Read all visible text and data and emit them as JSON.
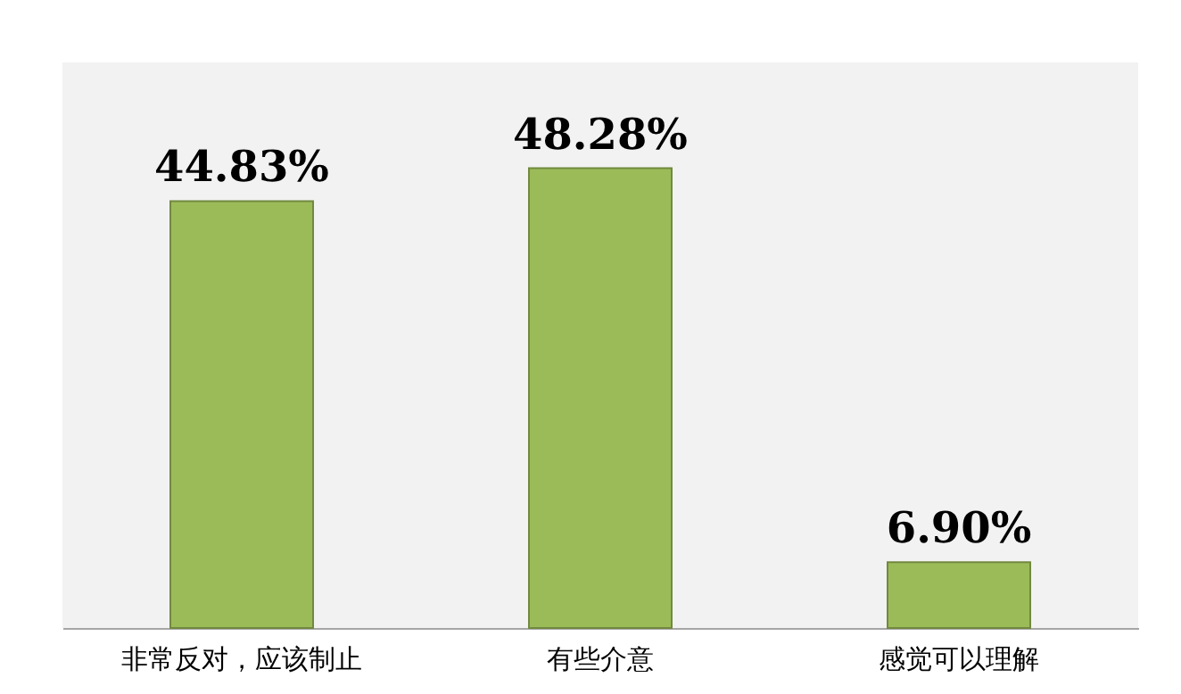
{
  "chart_data": {
    "type": "bar",
    "categories": [
      "非常反对，应该制止",
      "有些介意",
      "感觉可以理解"
    ],
    "values": [
      44.83,
      48.28,
      6.9
    ],
    "value_labels": [
      "44.83%",
      "48.28%",
      "6.90%"
    ],
    "color": "#9bbb59"
  }
}
